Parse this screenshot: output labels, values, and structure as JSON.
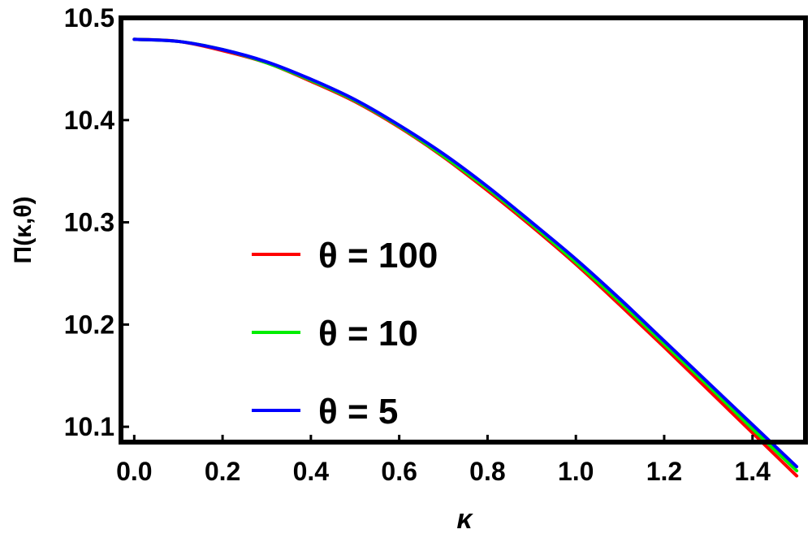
{
  "chart_data": {
    "type": "line",
    "xlabel": "κ",
    "ylabel": "Π(κ,θ)",
    "xlim": [
      -0.03,
      1.52
    ],
    "ylim": [
      10.085,
      10.5
    ],
    "xticks": [
      "0.0",
      "0.2",
      "0.4",
      "0.6",
      "0.8",
      "1.0",
      "1.2",
      "1.4"
    ],
    "yticks": [
      "10.1",
      "10.2",
      "10.3",
      "10.4",
      "10.5"
    ],
    "grid": false,
    "legend_position": "center-left",
    "x": [
      0.0,
      0.1,
      0.2,
      0.3,
      0.4,
      0.5,
      0.6,
      0.7,
      0.8,
      0.9,
      1.0,
      1.1,
      1.2,
      1.3,
      1.4,
      1.5
    ],
    "series": [
      {
        "name": "θ = 100",
        "color": "#ff0000",
        "values": [
          10.479,
          10.477,
          10.468,
          10.456,
          10.438,
          10.418,
          10.393,
          10.364,
          10.331,
          10.296,
          10.259,
          10.219,
          10.178,
          10.136,
          10.094,
          10.052
        ]
      },
      {
        "name": "θ = 10",
        "color": "#00ee00",
        "values": [
          10.479,
          10.477,
          10.469,
          10.456,
          10.439,
          10.419,
          10.394,
          10.365,
          10.333,
          10.298,
          10.261,
          10.222,
          10.181,
          10.14,
          10.098,
          10.057
        ]
      },
      {
        "name": "θ = 5",
        "color": "#0000ff",
        "values": [
          10.479,
          10.477,
          10.469,
          10.457,
          10.44,
          10.42,
          10.395,
          10.367,
          10.335,
          10.3,
          10.264,
          10.225,
          10.184,
          10.143,
          10.102,
          10.061
        ]
      }
    ]
  }
}
